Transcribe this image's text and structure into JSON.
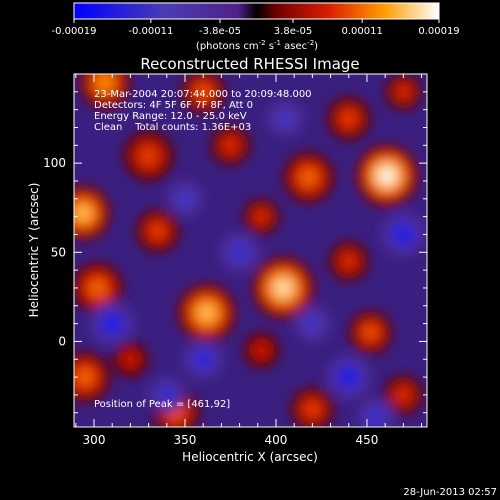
{
  "chart_data": {
    "type": "heatmap",
    "title": "Reconstructed RHESSI Image",
    "xlabel": "Heliocentric X (arcsec)",
    "ylabel": "Heliocentric Y (arcsec)",
    "xlim": [
      289,
      483
    ],
    "ylim": [
      -48,
      150
    ],
    "x_ticks": [
      300,
      350,
      400,
      450
    ],
    "y_ticks": [
      0,
      50,
      100
    ],
    "colorbar": {
      "ticks": [
        "-0.00019",
        "-0.00011",
        "-3.8e-05",
        "3.8e-05",
        "0.00011",
        "0.00019"
      ],
      "units_main": "(photons cm",
      "units_sup1": "-2",
      "units_mid1": " s",
      "units_sup2": "-1",
      "units_mid2": " asec",
      "units_sup3": "-2",
      "units_end": ")",
      "range": [
        -0.00019,
        0.00019
      ]
    },
    "annotations": [
      "23-Mar-2004 20:07:44.000 to 20:09:48.000",
      "Detectors: 4F 5F 6F 7F 8F, Att 0",
      "Energy Range: 12.0 - 25.0 keV",
      "Clean    Total counts: 1.36E+03"
    ],
    "peak_label": "Position of Peak = [461,92]",
    "peak": {
      "x": 461,
      "y": 92
    },
    "blobs": [
      {
        "x": 461,
        "y": 93,
        "r": 17,
        "v": 1.0
      },
      {
        "x": 404,
        "y": 30,
        "r": 17,
        "v": 0.92
      },
      {
        "x": 362,
        "y": 16,
        "r": 16,
        "v": 0.82
      },
      {
        "x": 294,
        "y": 72,
        "r": 15,
        "v": 0.82
      },
      {
        "x": 418,
        "y": 92,
        "r": 14,
        "v": 0.6
      },
      {
        "x": 330,
        "y": 104,
        "r": 14,
        "v": 0.5
      },
      {
        "x": 306,
        "y": 145,
        "r": 14,
        "v": 0.7
      },
      {
        "x": 360,
        "y": 140,
        "r": 12,
        "v": 0.55
      },
      {
        "x": 302,
        "y": 30,
        "r": 14,
        "v": 0.6
      },
      {
        "x": 335,
        "y": 62,
        "r": 12,
        "v": 0.5
      },
      {
        "x": 452,
        "y": 5,
        "r": 12,
        "v": 0.55
      },
      {
        "x": 392,
        "y": 70,
        "r": 10,
        "v": 0.45
      },
      {
        "x": 295,
        "y": -20,
        "r": 14,
        "v": 0.6
      },
      {
        "x": 345,
        "y": -40,
        "r": 13,
        "v": 0.55
      },
      {
        "x": 420,
        "y": -38,
        "r": 12,
        "v": 0.5
      },
      {
        "x": 440,
        "y": 125,
        "r": 12,
        "v": 0.5
      },
      {
        "x": 470,
        "y": 140,
        "r": 10,
        "v": 0.45
      },
      {
        "x": 440,
        "y": 45,
        "r": 11,
        "v": 0.45
      },
      {
        "x": 375,
        "y": 110,
        "r": 11,
        "v": 0.45
      },
      {
        "x": 320,
        "y": -10,
        "r": 10,
        "v": 0.4
      },
      {
        "x": 392,
        "y": -5,
        "r": 10,
        "v": 0.4
      },
      {
        "x": 470,
        "y": -30,
        "r": 11,
        "v": 0.45
      },
      {
        "x": 310,
        "y": 10,
        "r": -12,
        "v": -0.6
      },
      {
        "x": 360,
        "y": -10,
        "r": -11,
        "v": -0.55
      },
      {
        "x": 340,
        "y": -30,
        "r": -10,
        "v": -0.5
      },
      {
        "x": 440,
        "y": -20,
        "r": -12,
        "v": -0.6
      },
      {
        "x": 470,
        "y": 60,
        "r": -12,
        "v": -0.6
      },
      {
        "x": 380,
        "y": 50,
        "r": -11,
        "v": -0.5
      },
      {
        "x": 420,
        "y": 10,
        "r": -10,
        "v": -0.45
      },
      {
        "x": 350,
        "y": 80,
        "r": -10,
        "v": -0.45
      },
      {
        "x": 405,
        "y": 125,
        "r": -10,
        "v": -0.45
      },
      {
        "x": 455,
        "y": -42,
        "r": -10,
        "v": -0.5
      }
    ]
  },
  "footer": {
    "timestamp": "28-Jun-2013 02:57"
  }
}
